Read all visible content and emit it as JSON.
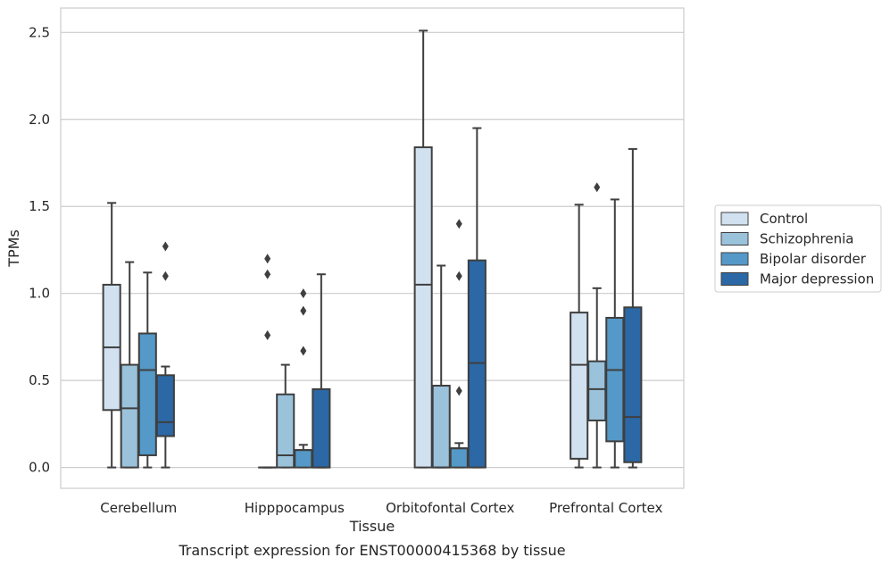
{
  "chart_data": {
    "type": "box",
    "caption": "Transcript expression for ENST00000415368 by tissue",
    "xlabel": "Tissue",
    "ylabel": "TPMs",
    "ylim": [
      -0.12,
      2.64
    ],
    "yticks": [
      0.0,
      0.5,
      1.0,
      1.5,
      2.0,
      2.5
    ],
    "ytick_labels": [
      "0.0",
      "0.5",
      "1.0",
      "1.5",
      "2.0",
      "2.5"
    ],
    "grid": true,
    "legend_position": "right",
    "categories": [
      "Cerebellum",
      "Hipppocampus",
      "Orbitofontal Cortex",
      "Prefrontal Cortex"
    ],
    "series": [
      {
        "name": "Control",
        "color": "#d1e1f0",
        "boxes": [
          {
            "whislo": 0.0,
            "q1": 0.33,
            "med": 0.69,
            "q3": 1.05,
            "whishi": 1.52,
            "fliers": []
          },
          {
            "whislo": 0.0,
            "q1": 0.0,
            "med": 0.0,
            "q3": 0.0,
            "whishi": 0.0,
            "fliers": [
              0.76,
              1.11,
              1.2
            ]
          },
          {
            "whislo": 0.0,
            "q1": 0.0,
            "med": 1.05,
            "q3": 1.84,
            "whishi": 2.51,
            "fliers": []
          },
          {
            "whislo": 0.0,
            "q1": 0.05,
            "med": 0.59,
            "q3": 0.89,
            "whishi": 1.51,
            "fliers": []
          }
        ]
      },
      {
        "name": "Schizophrenia",
        "color": "#9ac2db",
        "boxes": [
          {
            "whislo": 0.0,
            "q1": 0.0,
            "med": 0.34,
            "q3": 0.59,
            "whishi": 1.18,
            "fliers": []
          },
          {
            "whislo": 0.0,
            "q1": 0.0,
            "med": 0.07,
            "q3": 0.42,
            "whishi": 0.59,
            "fliers": []
          },
          {
            "whislo": 0.0,
            "q1": 0.0,
            "med": 0.0,
            "q3": 0.47,
            "whishi": 1.16,
            "fliers": []
          },
          {
            "whislo": 0.0,
            "q1": 0.27,
            "med": 0.45,
            "q3": 0.61,
            "whishi": 1.03,
            "fliers": [
              1.61
            ]
          }
        ]
      },
      {
        "name": "Bipolar disorder",
        "color": "#5499c7",
        "boxes": [
          {
            "whislo": 0.0,
            "q1": 0.07,
            "med": 0.56,
            "q3": 0.77,
            "whishi": 1.12,
            "fliers": []
          },
          {
            "whislo": 0.0,
            "q1": 0.0,
            "med": 0.1,
            "q3": 0.1,
            "whishi": 0.13,
            "fliers": [
              0.67,
              0.9,
              1.0
            ]
          },
          {
            "whislo": 0.0,
            "q1": 0.0,
            "med": 0.11,
            "q3": 0.11,
            "whishi": 0.14,
            "fliers": [
              0.44,
              1.1,
              1.4
            ]
          },
          {
            "whislo": 0.0,
            "q1": 0.15,
            "med": 0.56,
            "q3": 0.86,
            "whishi": 1.54,
            "fliers": []
          }
        ]
      },
      {
        "name": "Major depression",
        "color": "#2b68a5",
        "boxes": [
          {
            "whislo": 0.0,
            "q1": 0.18,
            "med": 0.26,
            "q3": 0.53,
            "whishi": 0.58,
            "fliers": [
              1.1,
              1.27
            ]
          },
          {
            "whislo": 0.0,
            "q1": 0.0,
            "med": 0.0,
            "q3": 0.45,
            "whishi": 1.11,
            "fliers": []
          },
          {
            "whislo": 0.0,
            "q1": 0.0,
            "med": 0.6,
            "q3": 1.19,
            "whishi": 1.95,
            "fliers": []
          },
          {
            "whislo": 0.0,
            "q1": 0.03,
            "med": 0.29,
            "q3": 0.92,
            "whishi": 1.83,
            "fliers": []
          }
        ]
      }
    ]
  }
}
